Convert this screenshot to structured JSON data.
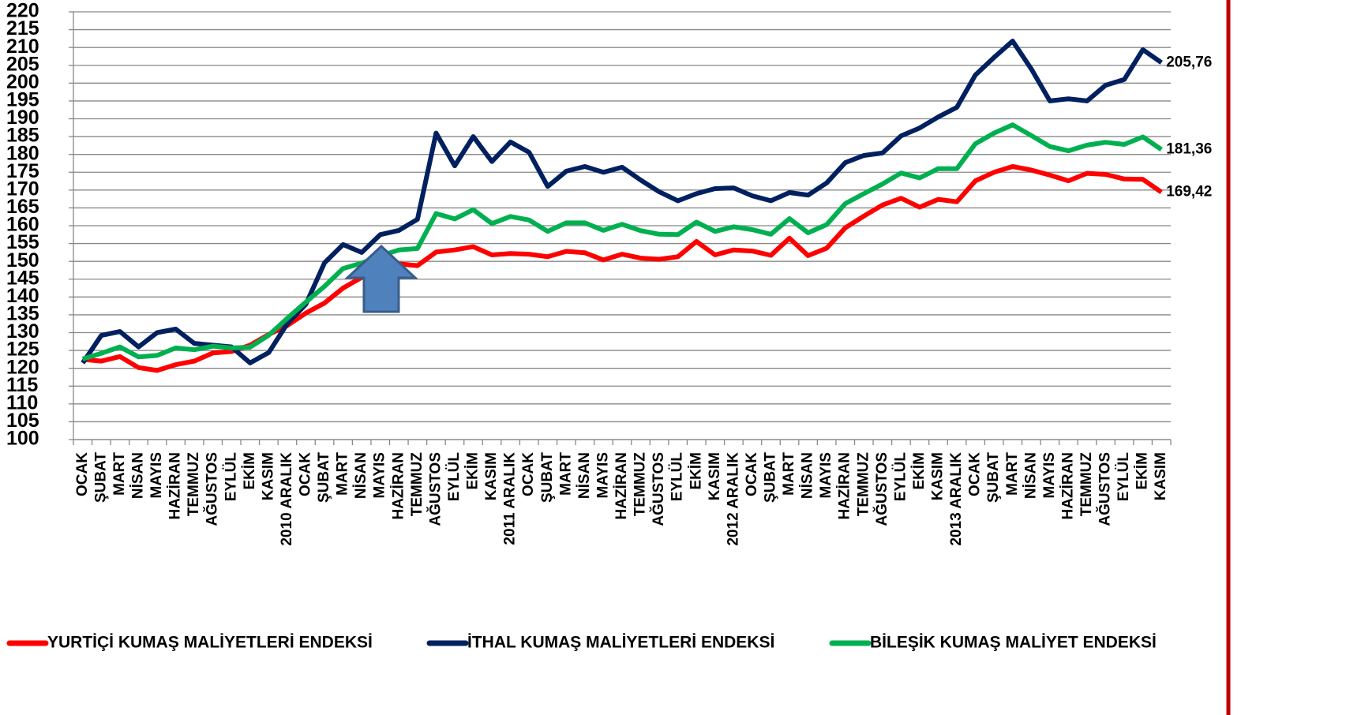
{
  "chart_data": {
    "type": "line",
    "categories": [
      "OCAK",
      "ŞUBAT",
      "MART",
      "NİSAN",
      "MAYIS",
      "HAZİRAN",
      "TEMMUZ",
      "AĞUSTOS",
      "EYLÜL",
      "EKİM",
      "KASIM",
      "2010 ARALIK",
      "OCAK",
      "ŞUBAT",
      "MART",
      "NİSAN",
      "MAYIS",
      "HAZİRAN",
      "TEMMUZ",
      "AĞUSTOS",
      "EYLÜL",
      "EKİM",
      "KASIM",
      "2011 ARALIK",
      "OCAK",
      "ŞUBAT",
      "MART",
      "NİSAN",
      "MAYIS",
      "HAZİRAN",
      "TEMMUZ",
      "AĞUSTOS",
      "EYLÜL",
      "EKİM",
      "KASIM",
      "2012 ARALIK",
      "OCAK",
      "ŞUBAT",
      "MART",
      "NİSAN",
      "MAYIS",
      "HAZİRAN",
      "TEMMUZ",
      "AĞUSTOS",
      "EYLÜL",
      "EKİM",
      "KASIM",
      "2013 ARALIK",
      "OCAK",
      "ŞUBAT",
      "MART",
      "NİSAN",
      "MAYIS",
      "HAZİRAN",
      "TEMMUZ",
      "AĞUSTOS",
      "EYLÜL",
      "EKİM",
      "KASIM"
    ],
    "series": [
      {
        "name": "YURTİÇİ KUMAŞ MALİYETLERİ ENDEKSİ",
        "color": "#ff0000",
        "values": [
          122.5,
          122,
          123.3,
          120.2,
          119.4,
          121,
          122,
          124.3,
          124.7,
          126.5,
          129.5,
          132,
          135.5,
          138.3,
          142.5,
          145.5,
          148.5,
          149.3,
          148.8,
          152.6,
          153.2,
          154.1,
          151.8,
          152.2,
          152,
          151.3,
          152.8,
          152.4,
          150.4,
          152,
          150.9,
          150.6,
          151.3,
          155.6,
          151.8,
          153.2,
          152.9,
          151.7,
          156.5,
          151.6,
          153.7,
          159.4,
          162.7,
          165.8,
          167.7,
          165.2,
          167.4,
          166.7,
          172.6,
          175,
          176.6,
          175.6,
          174.2,
          172.6,
          174.7,
          174.4,
          173.1,
          173,
          169.42
        ],
        "value_labels": [
          null,
          null,
          null,
          null,
          null,
          null,
          null,
          null,
          null,
          null,
          null,
          null,
          null,
          null,
          null,
          null,
          null,
          null,
          null,
          null,
          null,
          null,
          null,
          null,
          null,
          null,
          null,
          null,
          null,
          null,
          null,
          null,
          null,
          null,
          null,
          null,
          null,
          null,
          null,
          null,
          null,
          null,
          null,
          null,
          null,
          null,
          null,
          null,
          null,
          null,
          null,
          null,
          null,
          null,
          null,
          null,
          null,
          null,
          "169,42"
        ]
      },
      {
        "name": "İTHAL KUMAŞ MALİYETLERİ ENDEKSİ",
        "color": "#002060",
        "values": [
          121.5,
          129.2,
          130.3,
          126,
          130,
          131,
          127,
          126.5,
          126,
          121.5,
          124.4,
          132.5,
          138,
          149.6,
          154.7,
          152.5,
          157.5,
          158.7,
          161.8,
          186,
          176.8,
          185,
          178,
          183.5,
          180.6,
          171,
          175.3,
          176.6,
          175,
          176.4,
          172.8,
          169.5,
          167,
          169,
          170.4,
          170.6,
          168.4,
          167,
          169.3,
          168.6,
          172,
          177.7,
          179.7,
          180.4,
          185.2,
          187.4,
          190.5,
          193.2,
          202.3,
          207.2,
          211.8,
          204,
          195,
          195.6,
          195,
          199.4,
          201,
          209.4,
          205.76
        ],
        "value_labels": [
          null,
          null,
          null,
          null,
          null,
          null,
          null,
          null,
          null,
          null,
          null,
          null,
          null,
          null,
          null,
          null,
          null,
          null,
          null,
          null,
          null,
          null,
          null,
          null,
          null,
          null,
          null,
          null,
          null,
          null,
          null,
          null,
          null,
          null,
          null,
          null,
          null,
          null,
          null,
          null,
          null,
          null,
          null,
          null,
          null,
          null,
          null,
          null,
          null,
          null,
          null,
          null,
          null,
          null,
          null,
          null,
          null,
          null,
          "205,76"
        ]
      },
      {
        "name": "BİLEŞİK KUMAŞ MALİYET ENDEKSİ",
        "color": "#00b050",
        "values": [
          122.6,
          124.2,
          126,
          123.2,
          123.6,
          125.7,
          125.2,
          126.2,
          125.7,
          125.9,
          129.3,
          134,
          138.6,
          143,
          148,
          149.5,
          151.5,
          153.2,
          153.6,
          163.4,
          161.9,
          164.5,
          160.6,
          162.6,
          161.6,
          158.4,
          160.8,
          160.8,
          158.7,
          160.4,
          158.6,
          157.6,
          157.5,
          161,
          158.4,
          159.7,
          158.9,
          157.6,
          162,
          158,
          160.3,
          166.2,
          169,
          171.7,
          174.8,
          173.4,
          176,
          176,
          183,
          186,
          188.3,
          185.3,
          182.2,
          181,
          182.6,
          183.4,
          182.8,
          184.9,
          181.36
        ],
        "value_labels": [
          null,
          null,
          null,
          null,
          null,
          null,
          null,
          null,
          null,
          null,
          null,
          null,
          null,
          null,
          null,
          null,
          null,
          null,
          null,
          null,
          null,
          null,
          null,
          null,
          null,
          null,
          null,
          null,
          null,
          null,
          null,
          null,
          null,
          null,
          null,
          null,
          null,
          null,
          null,
          null,
          null,
          null,
          null,
          null,
          null,
          null,
          null,
          null,
          null,
          null,
          null,
          null,
          null,
          null,
          null,
          null,
          null,
          null,
          "181,36"
        ]
      }
    ],
    "ylim": [
      100,
      220
    ],
    "yticks": [
      100,
      105,
      110,
      115,
      120,
      125,
      130,
      135,
      140,
      145,
      150,
      155,
      160,
      165,
      170,
      175,
      180,
      185,
      190,
      195,
      200,
      205,
      210,
      215,
      220
    ],
    "grid": true,
    "legend": "bottom"
  }
}
